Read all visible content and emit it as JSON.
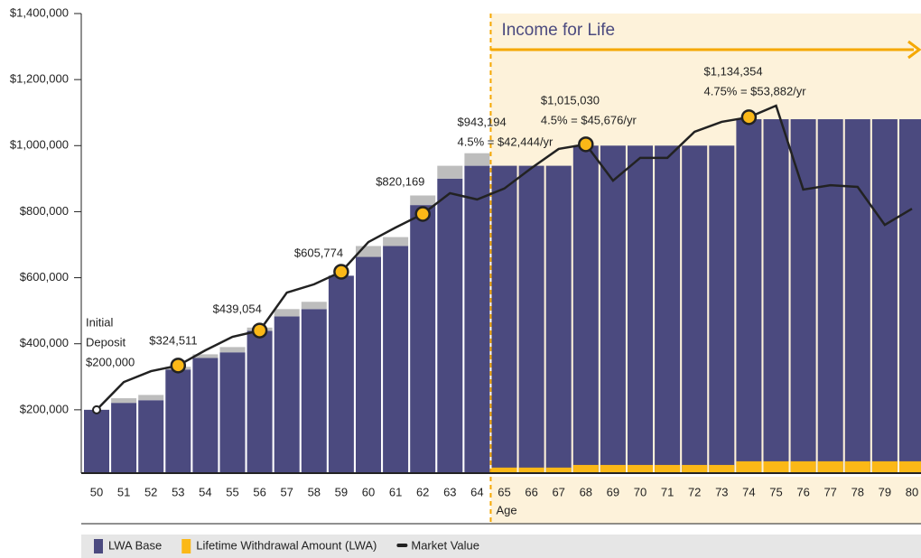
{
  "chart_data": {
    "type": "bar",
    "categories": [
      "50",
      "51",
      "52",
      "53",
      "54",
      "55",
      "56",
      "57",
      "58",
      "59",
      "60",
      "61",
      "62",
      "63",
      "64",
      "65",
      "66",
      "67",
      "68",
      "69",
      "70",
      "71",
      "72",
      "73",
      "74",
      "75",
      "76",
      "77",
      "78",
      "79",
      "80"
    ],
    "xlabel": "Age",
    "ylim": [
      0,
      1400000
    ],
    "yticks": [
      {
        "value": 200000,
        "label": "$200,000"
      },
      {
        "value": 400000,
        "label": "$400,000"
      },
      {
        "value": 600000,
        "label": "$600,000"
      },
      {
        "value": 800000,
        "label": "$800,000"
      },
      {
        "value": 1000000,
        "label": "$1,000,000"
      },
      {
        "value": 1200000,
        "label": "$1,200,000"
      },
      {
        "value": 1400000,
        "label": "$1,400,000"
      }
    ],
    "series": [
      {
        "name": "LWA Base",
        "color": "#4b4a7f",
        "values": [
          200000,
          221000,
          229000,
          322000,
          357000,
          374000,
          439000,
          483000,
          505000,
          606000,
          663000,
          696000,
          820000,
          900000,
          939000,
          939000,
          939000,
          939000,
          1000000,
          1000000,
          1000000,
          1000000,
          1000000,
          1000000,
          1080000,
          1080000,
          1080000,
          1080000,
          1080000,
          1080000,
          1080000
        ]
      },
      {
        "color": "#bdbdbd",
        "values": [
          null,
          14000,
          16000,
          8000,
          11000,
          16000,
          10000,
          22000,
          22000,
          null,
          33000,
          27000,
          29000,
          39000,
          38000,
          null,
          null,
          null,
          null,
          null,
          null,
          null,
          null,
          null,
          null,
          null,
          null,
          null,
          null,
          null,
          null
        ]
      },
      {
        "name": "Lifetime Withdrawal Amount (LWA)",
        "color": "#fbb817",
        "values": [
          null,
          null,
          null,
          null,
          null,
          null,
          null,
          null,
          null,
          null,
          null,
          null,
          null,
          null,
          null,
          25000,
          25000,
          25000,
          33000,
          33000,
          33000,
          33000,
          33000,
          33000,
          44000,
          44000,
          44000,
          44000,
          44000,
          44000,
          44000
        ]
      },
      {
        "name": "Market Value",
        "color": "#222222",
        "type": "line",
        "values": [
          200000,
          284000,
          317000,
          334000,
          380000,
          421000,
          440000,
          555000,
          580000,
          618000,
          708000,
          752000,
          793000,
          856000,
          837000,
          870000,
          932000,
          990000,
          1004000,
          894000,
          963000,
          963000,
          1042000,
          1072000,
          1086000,
          1121000,
          867000,
          880000,
          875000,
          760000,
          809000
        ]
      }
    ],
    "highlight_categories": [
      "53",
      "56",
      "59",
      "62",
      "68",
      "74"
    ],
    "income_label": "Income for Life",
    "income_start": "65",
    "annotations": [
      {
        "x": "50",
        "lines": [
          "Initial",
          "Deposit",
          "$200,000"
        ]
      },
      {
        "x": "53",
        "lines": [
          "$324,511"
        ]
      },
      {
        "x": "56",
        "lines": [
          "$439,054"
        ]
      },
      {
        "x": "59",
        "lines": [
          "$605,774"
        ]
      },
      {
        "x": "62",
        "lines": [
          "$820,169"
        ]
      },
      {
        "x": "65",
        "lines": [
          "$943,194",
          "4.5% = $42,444/yr"
        ]
      },
      {
        "x": "69",
        "lines": [
          "$1,015,030",
          "4.5% = $45,676/yr"
        ]
      },
      {
        "x": "75",
        "lines": [
          "$1,134,354",
          "4.75% = $53,882/yr"
        ]
      }
    ]
  }
}
